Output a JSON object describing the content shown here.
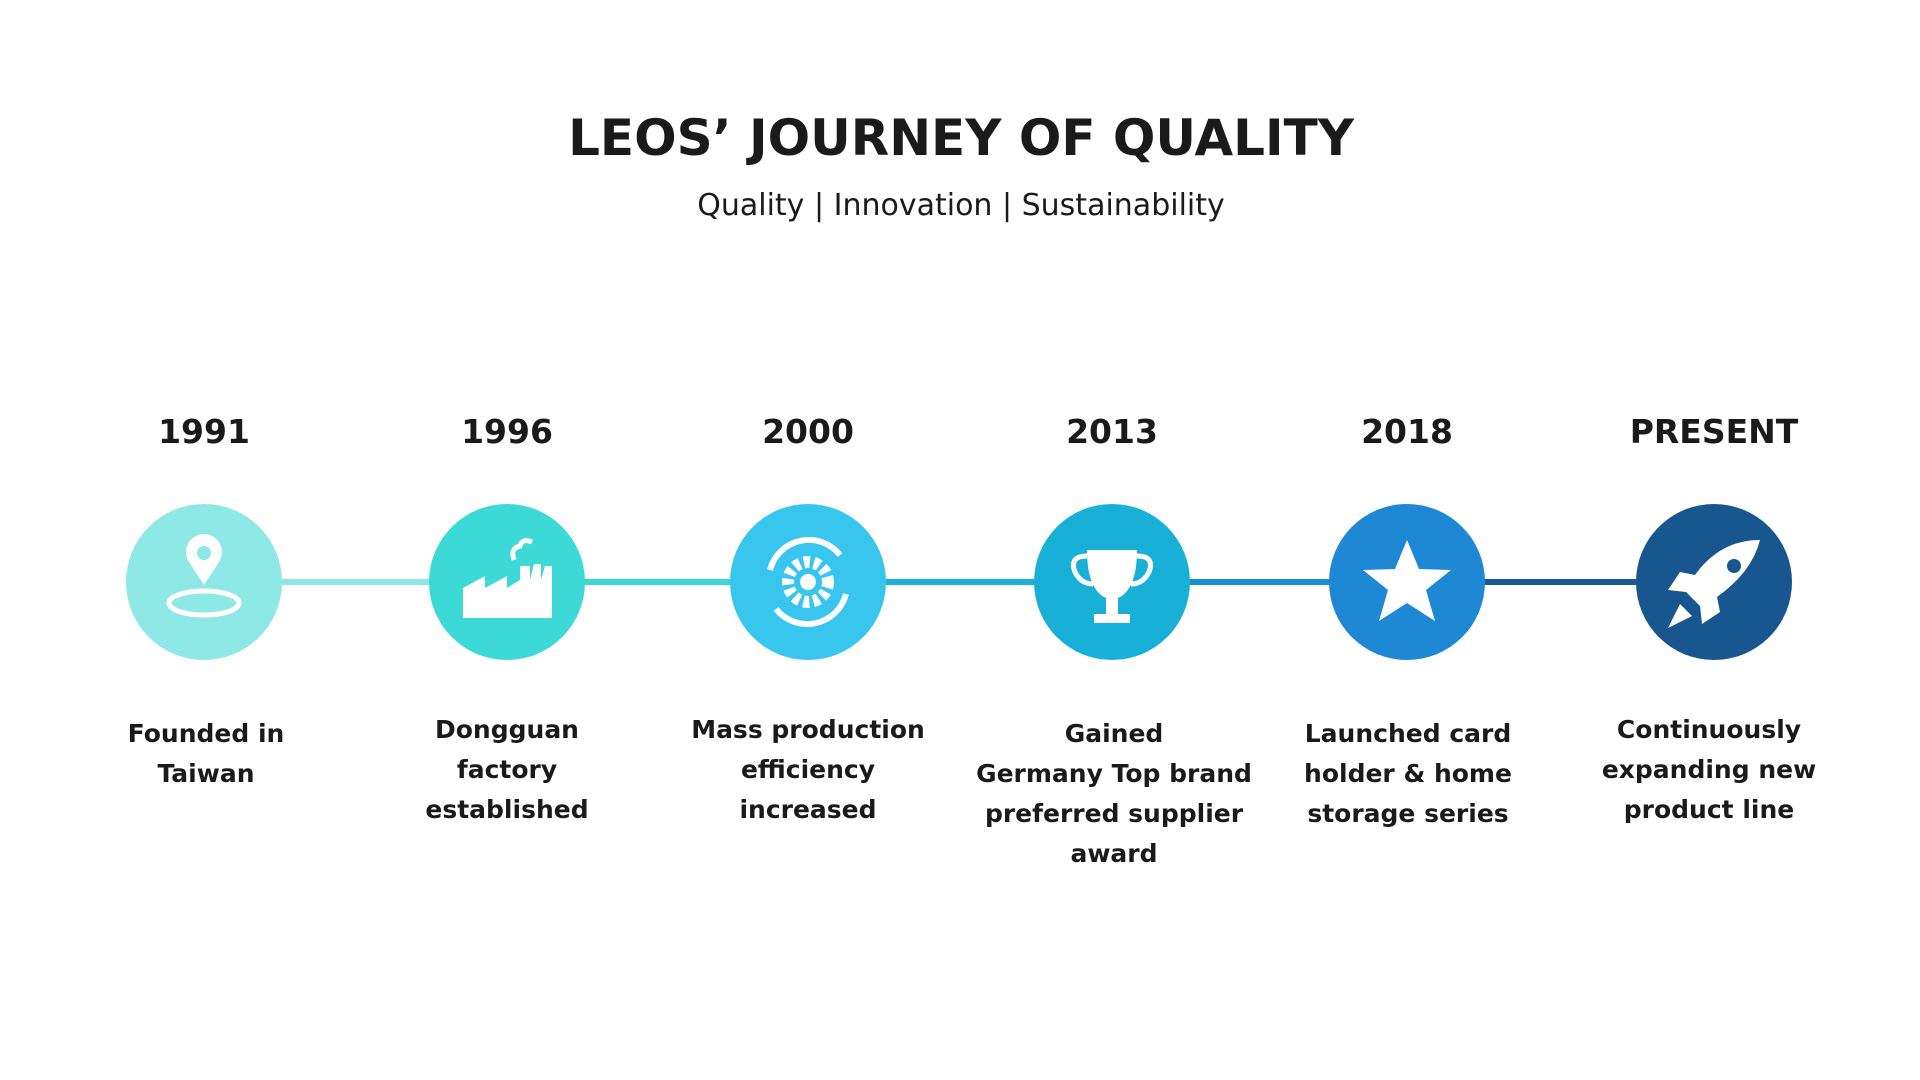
{
  "header": {
    "title": "LEOS’ JOURNEY OF QUALITY",
    "subtitle": "Quality |  Innovation |  Sustainability"
  },
  "milestones": [
    {
      "year": "1991",
      "lines": [
        "Founded in",
        "Taiwan"
      ]
    },
    {
      "year": "1996",
      "lines": [
        "Dongguan",
        "factory",
        "established"
      ]
    },
    {
      "year": "2000",
      "lines": [
        "Mass production",
        "efficiency",
        "increased"
      ]
    },
    {
      "year": "2013",
      "lines": [
        "Gained",
        "Germany Top brand",
        "preferred supplier",
        "award"
      ]
    },
    {
      "year": "2018",
      "lines": [
        "Launched card",
        "holder & home",
        "storage series"
      ]
    },
    {
      "year": "PRESENT",
      "lines": [
        "Continuously",
        "expanding new",
        "product line"
      ]
    }
  ]
}
